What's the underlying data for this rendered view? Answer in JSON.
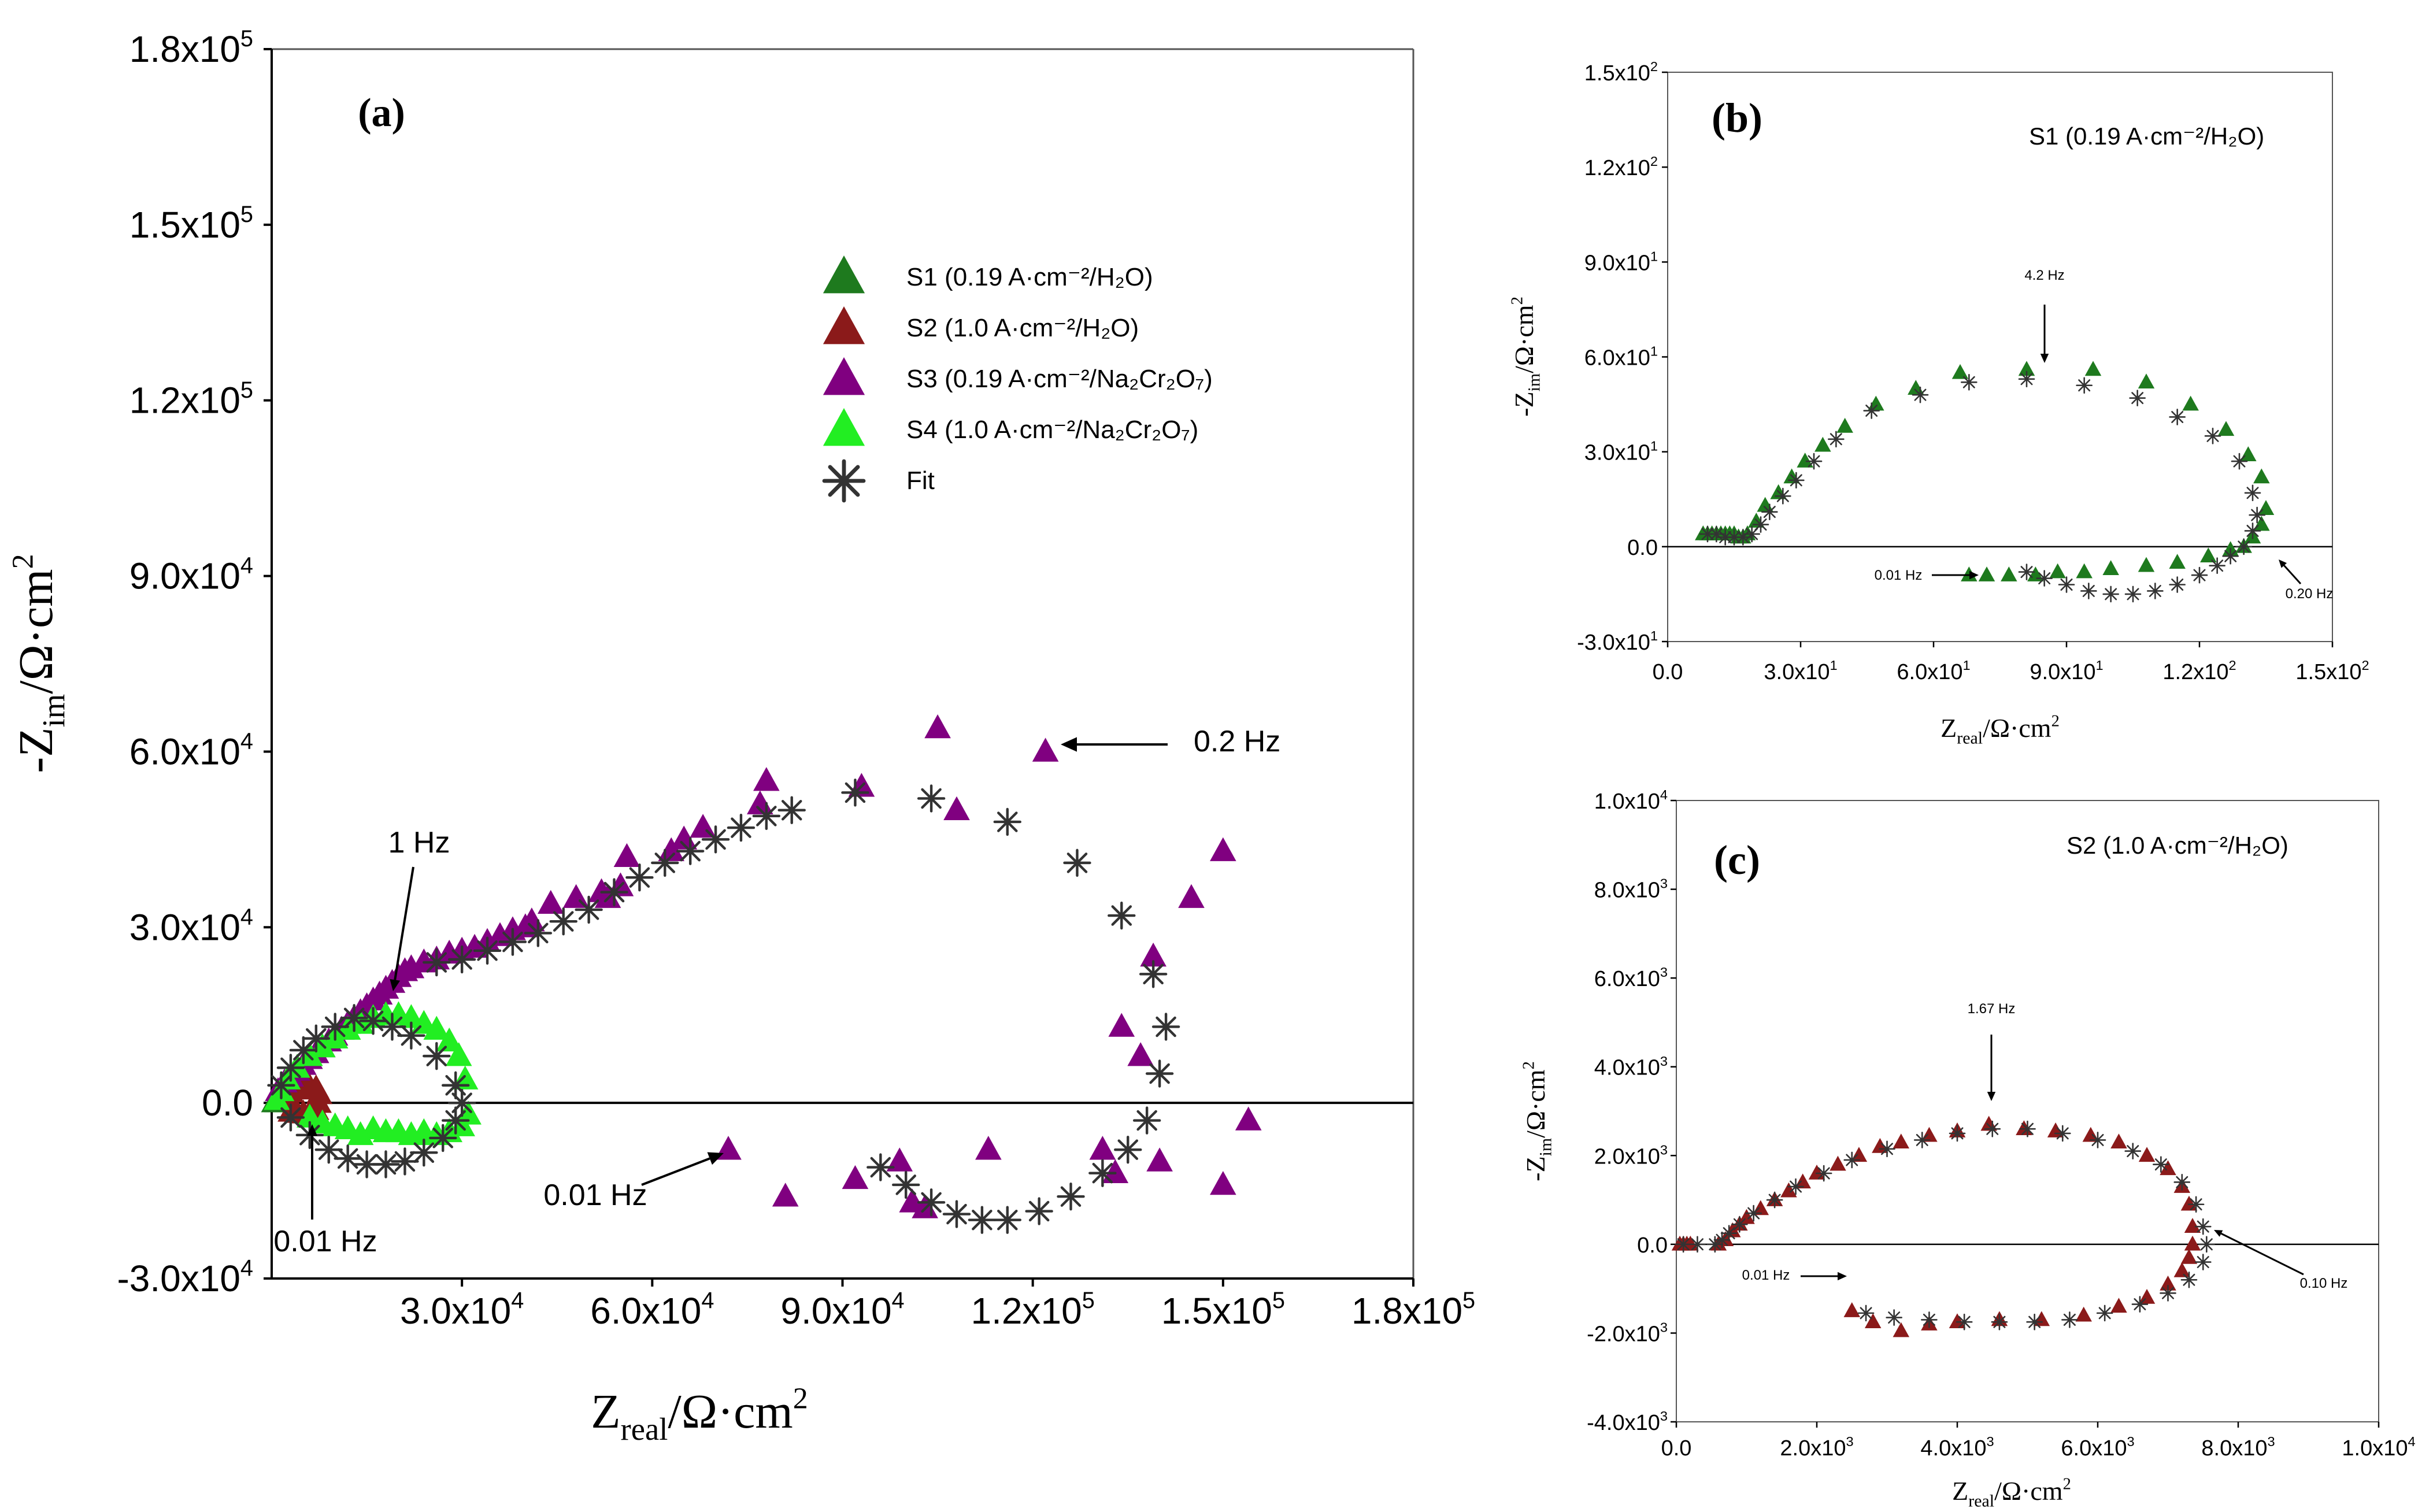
{
  "chart_data": [
    {
      "panel": "a",
      "type": "scatter",
      "panel_label": "(a)",
      "xlabel": "Z_real/Ω·cm²",
      "ylabel": "-Z_im/Ω·cm²",
      "xlim": [
        0,
        180000
      ],
      "ylim": [
        -30000,
        180000
      ],
      "x_ticks": [
        {
          "v": 30000,
          "m": "3.0x10",
          "e": "4"
        },
        {
          "v": 60000,
          "m": "6.0x10",
          "e": "4"
        },
        {
          "v": 90000,
          "m": "9.0x10",
          "e": "4"
        },
        {
          "v": 120000,
          "m": "1.2x10",
          "e": "5"
        },
        {
          "v": 150000,
          "m": "1.5x10",
          "e": "5"
        },
        {
          "v": 180000,
          "m": "1.8x10",
          "e": "5"
        }
      ],
      "y_ticks": [
        {
          "v": -30000,
          "m": "-3.0x10",
          "e": "4"
        },
        {
          "v": 0,
          "m": "0.0",
          "e": ""
        },
        {
          "v": 30000,
          "m": "3.0x10",
          "e": "4"
        },
        {
          "v": 60000,
          "m": "6.0x10",
          "e": "4"
        },
        {
          "v": 90000,
          "m": "9.0x10",
          "e": "4"
        },
        {
          "v": 120000,
          "m": "1.2x10",
          "e": "5"
        },
        {
          "v": 150000,
          "m": "1.5x10",
          "e": "5"
        },
        {
          "v": 180000,
          "m": "1.8x10",
          "e": "5"
        }
      ],
      "legend": [
        {
          "label": "S1 (0.19 A·cm⁻²/H₂O)",
          "marker": "triangle",
          "color": "#1e7a1e"
        },
        {
          "label": "S2 (1.0 A·cm⁻²/H₂O)",
          "marker": "triangle",
          "color": "#8b1a1a"
        },
        {
          "label": "S3 (0.19 A·cm⁻²/Na₂Cr₂O₇)",
          "marker": "triangle",
          "color": "#800080"
        },
        {
          "label": "S4 (1.0 A·cm⁻²/Na₂Cr₂O₇)",
          "marker": "triangle",
          "color": "#22ee22"
        },
        {
          "label": "Fit",
          "marker": "star",
          "color": "#333333"
        }
      ],
      "annotations": [
        {
          "text": "1 Hz",
          "x": 18000,
          "y": 19000
        },
        {
          "text": "0.2 Hz",
          "x": 123000,
          "y": 60000
        },
        {
          "text": "0.01 Hz",
          "x": 74000,
          "y": -9000
        },
        {
          "text": "0.01 Hz",
          "x": 6000,
          "y": -7000
        }
      ],
      "series": [
        {
          "name": "S1",
          "color": "#1e7a1e",
          "marker": "triangle",
          "x": [
            400,
            500,
            600,
            700,
            800,
            900
          ],
          "y": [
            100,
            150,
            200,
            220,
            180,
            100
          ]
        },
        {
          "name": "S2",
          "color": "#8b1a1a",
          "marker": "triangle",
          "x": [
            2000,
            3000,
            4000,
            5000,
            6000,
            7000,
            7500,
            7400,
            7000,
            6000,
            5000,
            4000,
            3000
          ],
          "y": [
            1000,
            1800,
            2300,
            2600,
            2700,
            2500,
            1500,
            0,
            -1200,
            -1800,
            -1800,
            -1700,
            -1500
          ]
        },
        {
          "name": "S3",
          "color": "#800080",
          "marker": "triangle",
          "x": [
            1000,
            2000,
            3000,
            4000,
            5000,
            6000,
            7000,
            8000,
            9000,
            10000,
            11000,
            12000,
            13000,
            14000,
            15000,
            16000,
            17000,
            18000,
            19000,
            20000,
            21000,
            22000,
            24000,
            26000,
            28000,
            30000,
            32000,
            34000,
            36000,
            38000,
            40000,
            41000,
            44000,
            48000,
            52000,
            53000,
            55000,
            56000,
            63000,
            65000,
            68000,
            77000,
            78000,
            93000,
            105000,
            108000,
            122000,
            139000,
            145000,
            150000,
            154000,
            150000,
            140000,
            137000,
            134000,
            131000,
            133000,
            113000,
            99000,
            101000,
            103000,
            92000,
            81000,
            72000
          ],
          "y": [
            2000,
            3500,
            4500,
            5500,
            6500,
            7500,
            8500,
            9500,
            10500,
            11500,
            12500,
            13500,
            14500,
            15500,
            16500,
            17500,
            18500,
            19500,
            20500,
            21500,
            22500,
            23000,
            24000,
            24500,
            25500,
            26000,
            26500,
            27500,
            28500,
            29500,
            30000,
            31000,
            34000,
            35000,
            36000,
            35000,
            37000,
            42000,
            43000,
            45000,
            47000,
            51000,
            55000,
            54000,
            64000,
            50000,
            60000,
            25000,
            35000,
            43000,
            -3000,
            -14000,
            -10000,
            8000,
            13000,
            -8000,
            -12000,
            -8000,
            -10000,
            -17000,
            -18000,
            -13000,
            -16000,
            -8000
          ]
        },
        {
          "name": "S4",
          "color": "#22ee22",
          "marker": "triangle",
          "x": [
            800,
            1500,
            2500,
            4000,
            6000,
            8000,
            10000,
            12000,
            14000,
            16000,
            18000,
            20000,
            22000,
            24000,
            26000,
            28000,
            29500,
            30500,
            31000,
            30000,
            28000,
            26000,
            24000,
            22000,
            20000,
            18000,
            16000,
            14000,
            12000,
            10000,
            8000,
            6000
          ],
          "y": [
            500,
            2000,
            4000,
            6000,
            8000,
            9500,
            11000,
            12500,
            13500,
            14500,
            15000,
            15000,
            14500,
            13500,
            12500,
            10500,
            8000,
            4000,
            -2000,
            -4000,
            -5000,
            -5500,
            -5000,
            -5500,
            -5000,
            -5000,
            -4500,
            -5500,
            -4500,
            -4000,
            -3500,
            -2500
          ]
        },
        {
          "name": "Fit",
          "color": "#333333",
          "marker": "star",
          "x": [
            1500,
            3000,
            5000,
            7000,
            10000,
            13000,
            16000,
            19000,
            22000,
            26000,
            29000,
            30000,
            29000,
            27000,
            24000,
            21000,
            18000,
            15000,
            12000,
            9000,
            6000,
            3000,
            26000,
            30000,
            34000,
            38000,
            42000,
            46000,
            50000,
            54000,
            58000,
            62000,
            66000,
            70000,
            74000,
            78000,
            82000,
            92000,
            104000,
            116000,
            127000,
            134000,
            139000,
            141000,
            140000,
            138000,
            135000,
            131000,
            126000,
            121000,
            116000,
            112000,
            108000,
            104000,
            100000,
            96000
          ],
          "y": [
            3000,
            6000,
            9000,
            11000,
            13000,
            14500,
            14000,
            13000,
            11500,
            8000,
            3000,
            0,
            -3000,
            -6000,
            -8500,
            -10000,
            -10500,
            -10500,
            -9500,
            -8000,
            -5500,
            -2500,
            24000,
            24500,
            26000,
            27500,
            29000,
            31000,
            33000,
            36000,
            38500,
            41000,
            43000,
            45000,
            47000,
            49000,
            50000,
            53000,
            52000,
            48000,
            41000,
            32000,
            22000,
            13000,
            5000,
            -3000,
            -8000,
            -12000,
            -16000,
            -18500,
            -20000,
            -20000,
            -19000,
            -17000,
            -14000,
            -11000
          ]
        }
      ]
    },
    {
      "panel": "b",
      "type": "scatter",
      "panel_label": "(b)",
      "subtitle": "S1 (0.19 A·cm⁻²/H₂O)",
      "xlabel": "Z_real/Ω·cm²",
      "ylabel": "-Z_im/Ω·cm²",
      "xlim": [
        0,
        150
      ],
      "ylim": [
        -30,
        150
      ],
      "x_ticks": [
        {
          "v": 0,
          "m": "0.0",
          "e": ""
        },
        {
          "v": 30,
          "m": "3.0x10",
          "e": "1"
        },
        {
          "v": 60,
          "m": "6.0x10",
          "e": "1"
        },
        {
          "v": 90,
          "m": "9.0x10",
          "e": "1"
        },
        {
          "v": 120,
          "m": "1.2x10",
          "e": "2"
        },
        {
          "v": 150,
          "m": "1.5x10",
          "e": "2"
        }
      ],
      "y_ticks": [
        {
          "v": -30,
          "m": "-3.0x10",
          "e": "1"
        },
        {
          "v": 0,
          "m": "0.0",
          "e": ""
        },
        {
          "v": 30,
          "m": "3.0x10",
          "e": "1"
        },
        {
          "v": 60,
          "m": "6.0x10",
          "e": "1"
        },
        {
          "v": 90,
          "m": "9.0x10",
          "e": "1"
        },
        {
          "v": 120,
          "m": "1.2x10",
          "e": "2"
        },
        {
          "v": 150,
          "m": "1.5x10",
          "e": "2"
        }
      ],
      "annotations": [
        {
          "text": "4.2 Hz",
          "x": 81,
          "y": 57
        },
        {
          "text": "0.01 Hz",
          "x": 68,
          "y": -9
        },
        {
          "text": "0.20 Hz",
          "x": 130,
          "y": -4
        }
      ],
      "series": [
        {
          "name": "S1",
          "color": "#1e7a1e",
          "marker": "triangle",
          "x": [
            8,
            9,
            10,
            11,
            12,
            13,
            14,
            15,
            16,
            17,
            18,
            20,
            22,
            25,
            28,
            31,
            35,
            40,
            47,
            56,
            66,
            81,
            96,
            108,
            118,
            126,
            131,
            134,
            135,
            134,
            132,
            130,
            127,
            122,
            115,
            108,
            100,
            94,
            88,
            83,
            77,
            72,
            68
          ],
          "y": [
            4,
            4,
            4,
            4,
            4,
            4,
            4,
            4,
            3,
            3,
            4,
            8,
            13,
            17,
            22,
            27,
            32,
            38,
            45,
            50,
            55,
            56,
            56,
            52,
            45,
            37,
            29,
            22,
            12,
            7,
            3,
            0,
            -1,
            -3,
            -5,
            -6,
            -7,
            -8,
            -8,
            -9,
            -9,
            -9,
            -9
          ]
        },
        {
          "name": "Fit",
          "color": "#333333",
          "marker": "star",
          "x": [
            9,
            11,
            13,
            15,
            17,
            19,
            21,
            23,
            26,
            29,
            33,
            38,
            46,
            57,
            68,
            81,
            94,
            106,
            115,
            123,
            129,
            132,
            133,
            132,
            130,
            127,
            124,
            120,
            115,
            110,
            105,
            100,
            95,
            90,
            85,
            81
          ],
          "y": [
            4,
            4,
            3,
            3,
            3,
            4,
            7,
            11,
            16,
            21,
            27,
            34,
            43,
            48,
            52,
            53,
            51,
            47,
            41,
            35,
            27,
            17,
            10,
            5,
            0,
            -3,
            -6,
            -9,
            -12,
            -14,
            -15,
            -15,
            -14,
            -12,
            -10,
            -8
          ]
        }
      ]
    },
    {
      "panel": "c",
      "type": "scatter",
      "panel_label": "(c)",
      "subtitle": "S2 (1.0 A·cm⁻²/H₂O)",
      "xlabel": "Z_real/Ω·cm²",
      "ylabel": "-Z_im/Ω·cm²",
      "xlim": [
        0,
        10000
      ],
      "ylim": [
        -4000,
        10000
      ],
      "x_ticks": [
        {
          "v": 0,
          "m": "0.0",
          "e": ""
        },
        {
          "v": 2000,
          "m": "2.0x10",
          "e": "3"
        },
        {
          "v": 4000,
          "m": "4.0x10",
          "e": "3"
        },
        {
          "v": 6000,
          "m": "6.0x10",
          "e": "3"
        },
        {
          "v": 8000,
          "m": "8.0x10",
          "e": "3"
        },
        {
          "v": 10000,
          "m": "1.0x10",
          "e": "4"
        }
      ],
      "y_ticks": [
        {
          "v": -4000,
          "m": "-4.0x10",
          "e": "3"
        },
        {
          "v": -2000,
          "m": "-2.0x10",
          "e": "3"
        },
        {
          "v": 0,
          "m": "0.0",
          "e": ""
        },
        {
          "v": 2000,
          "m": "2.0x10",
          "e": "3"
        },
        {
          "v": 4000,
          "m": "4.0x10",
          "e": "3"
        },
        {
          "v": 6000,
          "m": "6.0x10",
          "e": "3"
        },
        {
          "v": 8000,
          "m": "8.0x10",
          "e": "3"
        },
        {
          "v": 10000,
          "m": "1.0x10",
          "e": "4"
        }
      ],
      "annotations": [
        {
          "text": "1.67 Hz",
          "x": 4450,
          "y": 2700
        },
        {
          "text": "0.01 Hz",
          "x": 2450,
          "y": -1500
        },
        {
          "text": "0.10 Hz",
          "x": 7500,
          "y": -300
        }
      ],
      "series": [
        {
          "name": "S2",
          "color": "#8b1a1a",
          "marker": "triangle",
          "x": [
            50,
            100,
            150,
            200,
            600,
            700,
            800,
            900,
            1000,
            1200,
            1400,
            1600,
            1800,
            2000,
            2300,
            2600,
            2900,
            3200,
            3600,
            4000,
            4450,
            4950,
            5400,
            5900,
            6300,
            6700,
            7000,
            7200,
            7300,
            7350,
            7350,
            7300,
            7200,
            7000,
            6700,
            6300,
            5800,
            5200,
            4600,
            4000,
            3600,
            3200,
            2800,
            2500
          ],
          "y": [
            0,
            0,
            0,
            0,
            0,
            100,
            300,
            450,
            600,
            800,
            1000,
            1200,
            1400,
            1600,
            1800,
            2000,
            2200,
            2300,
            2450,
            2550,
            2700,
            2600,
            2550,
            2450,
            2300,
            2000,
            1700,
            1300,
            900,
            400,
            0,
            -300,
            -600,
            -900,
            -1200,
            -1400,
            -1600,
            -1700,
            -1700,
            -1750,
            -1800,
            -1950,
            -1750,
            -1500
          ]
        },
        {
          "name": "Fit",
          "color": "#333333",
          "marker": "star",
          "x": [
            100,
            300,
            550,
            650,
            750,
            900,
            1100,
            1400,
            1700,
            2100,
            2500,
            3000,
            3500,
            4000,
            4500,
            5000,
            5500,
            6000,
            6500,
            6900,
            7200,
            7400,
            7500,
            7550,
            7500,
            7300,
            7000,
            6600,
            6100,
            5600,
            5100,
            4600,
            4100,
            3600,
            3100,
            2700
          ],
          "y": [
            0,
            0,
            0,
            100,
            250,
            450,
            700,
            1000,
            1300,
            1600,
            1900,
            2150,
            2350,
            2500,
            2600,
            2600,
            2500,
            2350,
            2100,
            1800,
            1400,
            900,
            400,
            0,
            -400,
            -800,
            -1100,
            -1350,
            -1550,
            -1700,
            -1750,
            -1750,
            -1750,
            -1700,
            -1650,
            -1550
          ]
        }
      ]
    }
  ]
}
